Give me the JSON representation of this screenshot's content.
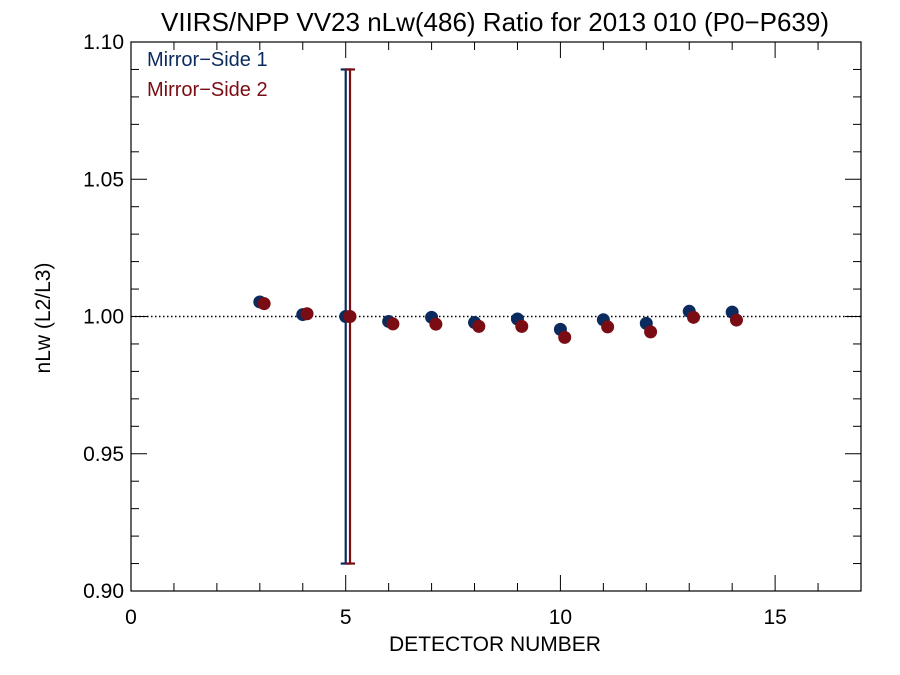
{
  "chart_data": {
    "type": "scatter",
    "title": "VIIRS/NPP VV23 nLw(486) Ratio for 2013 010 (P0−P639)",
    "xlabel": "DETECTOR NUMBER",
    "ylabel": "nLw (L2/L3)",
    "xlim": [
      0,
      17
    ],
    "ylim": [
      0.9,
      1.1
    ],
    "x_ticks": [
      0,
      5,
      10,
      15
    ],
    "x_tick_labels": [
      "0",
      "5",
      "10",
      "15"
    ],
    "y_ticks": [
      0.9,
      0.95,
      1.0,
      1.05,
      1.1
    ],
    "y_tick_labels": [
      "0.90",
      "0.95",
      "1.00",
      "1.05",
      "1.10"
    ],
    "reference_line": 1.0,
    "legend_position": "top-left",
    "series": [
      {
        "name": "Mirror−Side 1",
        "color": "#0b2a5e",
        "x": [
          3,
          4,
          5,
          6,
          7,
          8,
          9,
          10,
          11,
          12,
          13,
          14
        ],
        "values": [
          1.0053,
          1.0007,
          1.0,
          0.9982,
          0.9997,
          0.9978,
          0.9991,
          0.9953,
          0.9988,
          0.9975,
          1.0019,
          1.0016
        ],
        "error_bar": {
          "x": 5,
          "low": 0.91,
          "high": 1.09
        }
      },
      {
        "name": "Mirror−Side 2",
        "color": "#7a0c14",
        "x": [
          3.1,
          4.1,
          5.1,
          6.1,
          7.1,
          8.1,
          9.1,
          10.1,
          11.1,
          12.1,
          13.1,
          14.1
        ],
        "values": [
          1.0047,
          1.001,
          1.0,
          0.9973,
          0.9972,
          0.9964,
          0.9964,
          0.9924,
          0.9962,
          0.9944,
          0.9997,
          0.9987
        ],
        "error_bar": {
          "x": 5.1,
          "low": 0.91,
          "high": 1.09
        }
      }
    ]
  }
}
